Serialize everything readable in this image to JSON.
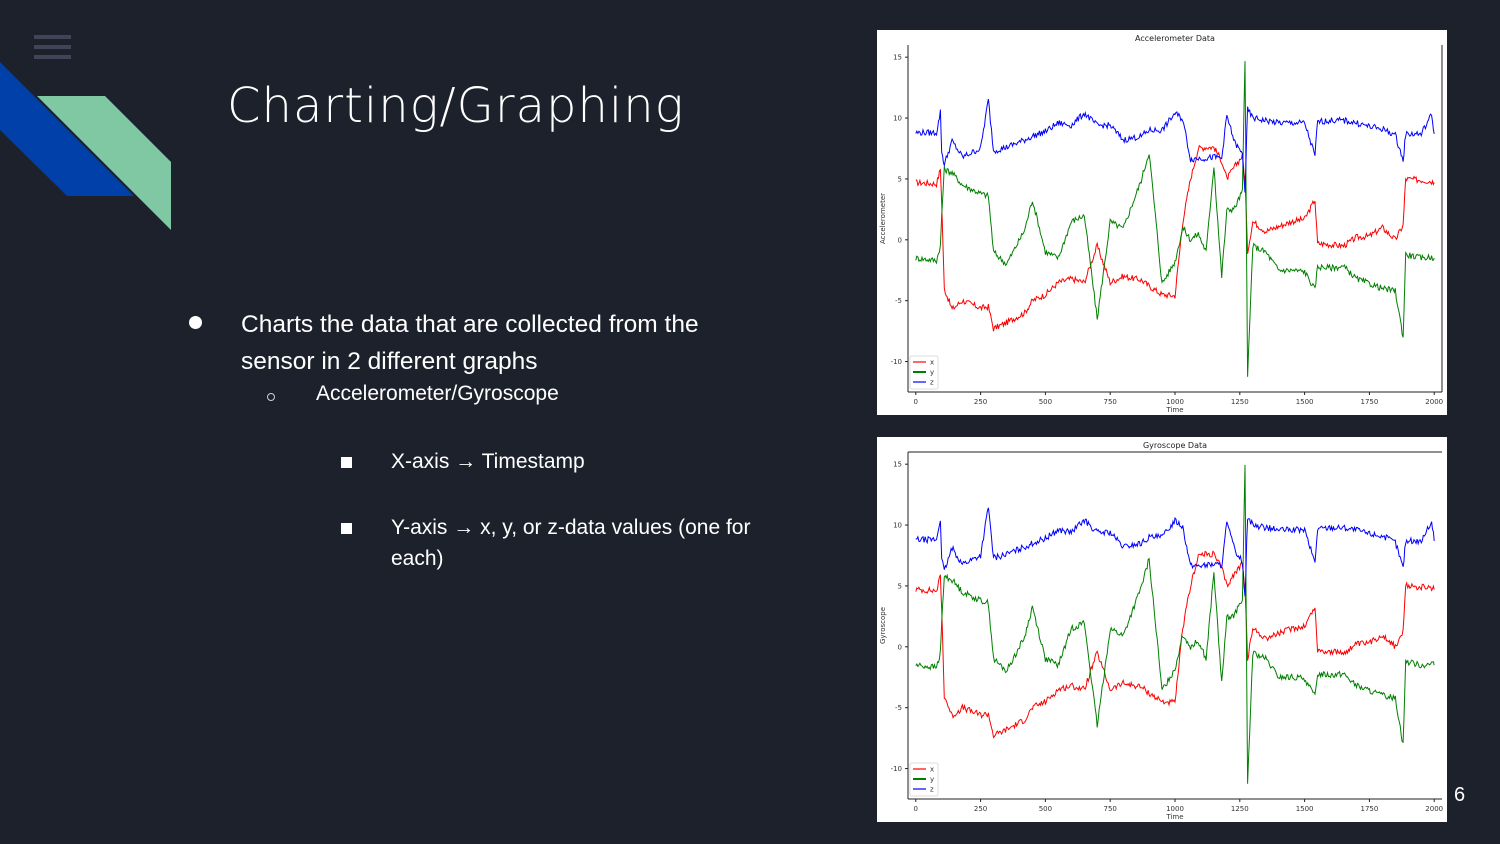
{
  "slide": {
    "title": "Charting/Graphing",
    "page_number": "6",
    "menu_icon": "hamburger-menu-icon",
    "colors": {
      "background": "#1c212c",
      "deco_blue": "#0040a8",
      "deco_green": "#80c8a4",
      "text": "#ffffff"
    },
    "bullets": {
      "level1": "Charts the data that are collected from the sensor in 2  different graphs",
      "level2": "Accelerometer/Gyroscope",
      "level3": [
        "X-axis → Timestamp",
        "Y-axis → x, y, or z-data values (one for each)"
      ]
    }
  },
  "chart_data": [
    {
      "type": "line",
      "title": "Accelerometer Data",
      "xlabel": "Time",
      "ylabel": "Accelerometer",
      "xlim": [
        -30,
        2030
      ],
      "ylim": [
        -12.5,
        16
      ],
      "xticks": [
        0,
        250,
        500,
        750,
        1000,
        1250,
        1500,
        1750,
        2000
      ],
      "yticks": [
        -10,
        -5,
        0,
        5,
        10,
        15
      ],
      "grid": false,
      "legend_position": "lower left",
      "x": [
        0,
        80,
        95,
        100,
        110,
        140,
        180,
        250,
        280,
        300,
        350,
        420,
        450,
        500,
        550,
        600,
        650,
        700,
        750,
        800,
        870,
        900,
        950,
        1000,
        1030,
        1060,
        1090,
        1120,
        1150,
        1180,
        1200,
        1230,
        1260,
        1270,
        1280,
        1300,
        1350,
        1400,
        1450,
        1500,
        1540,
        1550,
        1600,
        1650,
        1700,
        1750,
        1800,
        1850,
        1880,
        1890,
        1950,
        1990,
        2000
      ],
      "series": [
        {
          "name": "x",
          "color": "#ff0000",
          "values": [
            4.7,
            4.6,
            5.8,
            3,
            -4,
            -5.7,
            -5,
            -5.6,
            -5.5,
            -7.3,
            -6.8,
            -6,
            -5,
            -4.5,
            -3.5,
            -3.2,
            -3.5,
            -0.5,
            -3.5,
            -3,
            -3.3,
            -3.8,
            -4.5,
            -4.6,
            1.5,
            5,
            7.5,
            7.6,
            7.6,
            6.5,
            5.0,
            6.0,
            6.9,
            4.9,
            -1,
            1.5,
            0.7,
            1.1,
            1.5,
            1.7,
            3.3,
            -0.3,
            -0.4,
            -0.5,
            0.2,
            0.3,
            1.0,
            0.0,
            1.2,
            5.0,
            4.9,
            4.8,
            4.7
          ]
        },
        {
          "name": "y",
          "color": "#008000",
          "values": [
            -1.5,
            -1.7,
            -0.5,
            2,
            5.8,
            5.5,
            4.5,
            3.8,
            3.6,
            -1,
            -2,
            0.8,
            3.3,
            -1,
            -1.5,
            1.5,
            2,
            -6.5,
            1.5,
            0.9,
            4.9,
            7.2,
            -3.6,
            -1.8,
            1.0,
            0.0,
            0.5,
            -1.0,
            6.1,
            -3,
            2.4,
            2.6,
            4.0,
            14.7,
            -11.3,
            -0.5,
            -1.0,
            -2.5,
            -2.5,
            -2.6,
            -4.1,
            -2.2,
            -2.3,
            -2.2,
            -3.2,
            -3.6,
            -4.0,
            -4.2,
            -8.0,
            -1.2,
            -1.5,
            -1.4,
            -1.5
          ]
        },
        {
          "name": "z",
          "color": "#0000ff",
          "values": [
            8.8,
            8.8,
            10.5,
            7.2,
            6.2,
            8.1,
            6.8,
            7.5,
            11.5,
            7.3,
            7.6,
            8.2,
            8.5,
            8.9,
            9.6,
            9.4,
            10.4,
            9.4,
            9.4,
            8.2,
            8.5,
            9.0,
            9.0,
            10.4,
            9.9,
            6.6,
            6.7,
            6.7,
            6.8,
            6.7,
            10.2,
            8.0,
            7.0,
            4.0,
            10.7,
            10.0,
            9.8,
            9.6,
            9.6,
            9.6,
            6.9,
            9.7,
            9.8,
            9.8,
            9.6,
            9.3,
            9.1,
            8.6,
            6.5,
            8.7,
            8.7,
            10.3,
            8.7
          ]
        }
      ]
    },
    {
      "type": "line",
      "title": "Gyroscope Data",
      "xlabel": "Time",
      "ylabel": "Gyroscope",
      "xlim": [
        -30,
        2030
      ],
      "ylim": [
        -12.5,
        16
      ],
      "xticks": [
        0,
        250,
        500,
        750,
        1000,
        1250,
        1500,
        1750,
        2000
      ],
      "yticks": [
        -10,
        -5,
        0,
        5,
        10,
        15
      ],
      "grid": false,
      "legend_position": "lower left",
      "x": [
        0,
        80,
        95,
        100,
        110,
        140,
        180,
        250,
        280,
        300,
        350,
        420,
        450,
        500,
        550,
        600,
        650,
        700,
        750,
        800,
        870,
        900,
        950,
        1000,
        1030,
        1060,
        1090,
        1120,
        1150,
        1180,
        1200,
        1230,
        1260,
        1270,
        1280,
        1300,
        1350,
        1400,
        1450,
        1500,
        1540,
        1550,
        1600,
        1650,
        1700,
        1750,
        1800,
        1850,
        1880,
        1890,
        1950,
        1990,
        2000
      ],
      "series": [
        {
          "name": "x",
          "color": "#ff0000",
          "values": [
            4.7,
            4.6,
            5.8,
            3,
            -4,
            -5.7,
            -5,
            -5.6,
            -5.5,
            -7.3,
            -6.8,
            -6,
            -5,
            -4.5,
            -3.5,
            -3.2,
            -3.5,
            -0.5,
            -3.5,
            -3,
            -3.3,
            -3.8,
            -4.5,
            -4.6,
            1.5,
            5,
            7.5,
            7.6,
            7.6,
            6.5,
            5.0,
            6.0,
            6.9,
            4.9,
            -1,
            1.5,
            0.7,
            1.1,
            1.5,
            1.7,
            3.3,
            -0.3,
            -0.4,
            -0.5,
            0.2,
            0.3,
            1.0,
            0.0,
            1.2,
            5.0,
            4.9,
            4.8,
            4.7
          ]
        },
        {
          "name": "y",
          "color": "#008000",
          "values": [
            -1.5,
            -1.7,
            -0.5,
            2,
            5.8,
            5.5,
            4.5,
            3.8,
            3.6,
            -1,
            -2,
            0.8,
            3.3,
            -1,
            -1.5,
            1.5,
            2,
            -6.5,
            1.5,
            0.9,
            4.9,
            7.2,
            -3.6,
            -1.8,
            1.0,
            0.0,
            0.5,
            -1.0,
            6.1,
            -3,
            2.4,
            2.6,
            4.0,
            14.7,
            -11.3,
            -0.5,
            -1.0,
            -2.5,
            -2.5,
            -2.6,
            -4.1,
            -2.2,
            -2.3,
            -2.2,
            -3.2,
            -3.6,
            -4.0,
            -4.2,
            -8.0,
            -1.2,
            -1.5,
            -1.4,
            -1.5
          ]
        },
        {
          "name": "z",
          "color": "#0000ff",
          "values": [
            8.8,
            8.8,
            10.5,
            7.2,
            6.2,
            8.1,
            6.8,
            7.5,
            11.5,
            7.3,
            7.6,
            8.2,
            8.5,
            8.9,
            9.6,
            9.4,
            10.4,
            9.4,
            9.4,
            8.2,
            8.5,
            9.0,
            9.0,
            10.4,
            9.9,
            6.6,
            6.7,
            6.7,
            6.8,
            6.7,
            10.2,
            8.0,
            7.0,
            4.0,
            10.7,
            10.0,
            9.8,
            9.6,
            9.6,
            9.6,
            6.9,
            9.7,
            9.8,
            9.8,
            9.6,
            9.3,
            9.1,
            8.6,
            6.5,
            8.7,
            8.7,
            10.3,
            8.7
          ]
        }
      ]
    }
  ]
}
